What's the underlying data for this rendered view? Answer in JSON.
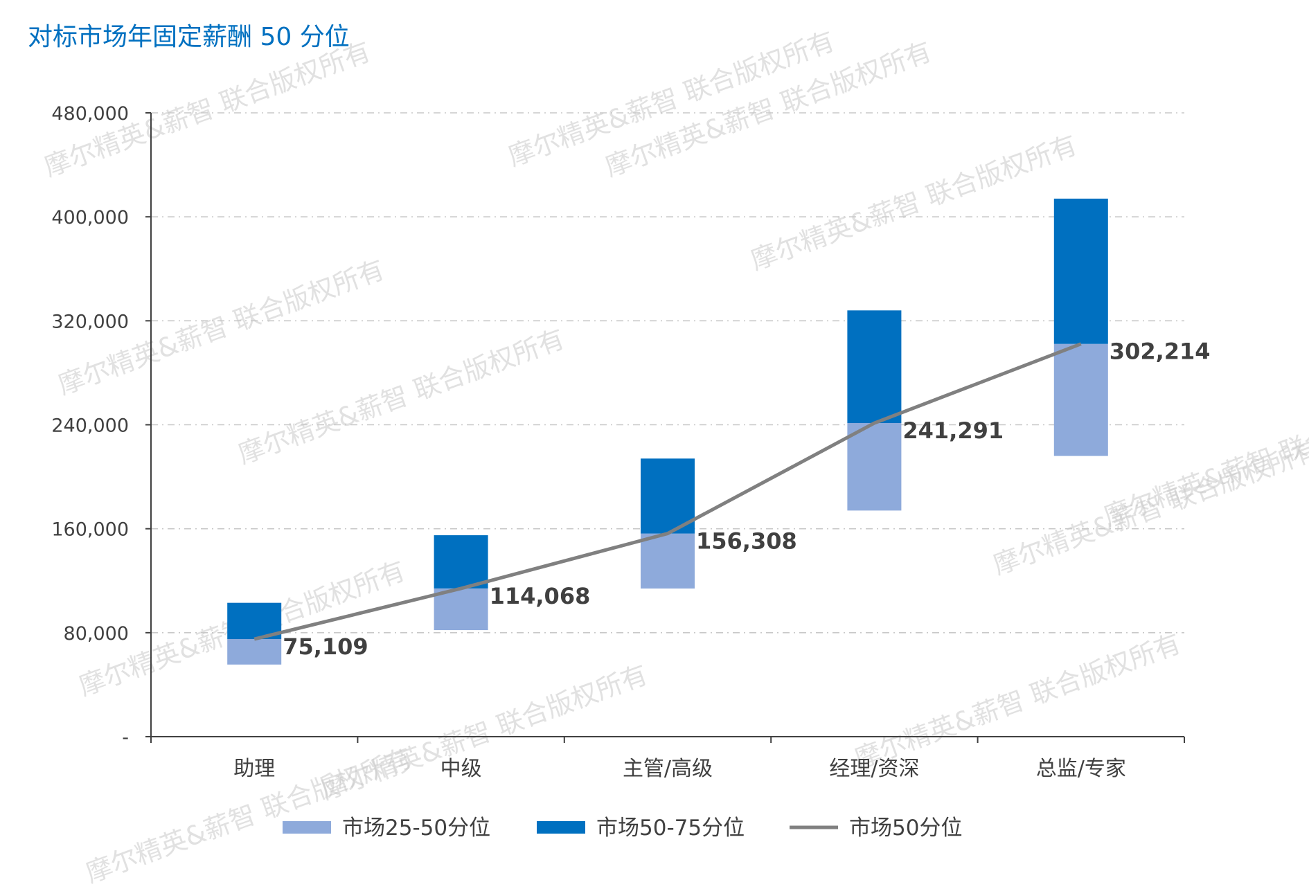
{
  "chart_data": {
    "type": "bar",
    "title": "对标市场年固定薪酬 50 分位",
    "categories": [
      "助理",
      "中级",
      "主管/高级",
      "经理/资深",
      "总监/专家"
    ],
    "series": [
      {
        "name": "市场25-50分位",
        "color": "#8eaadb",
        "low": [
          55500,
          82000,
          114000,
          174000,
          216000
        ],
        "high": [
          75109,
          114068,
          156308,
          241291,
          302214
        ]
      },
      {
        "name": "市场50-75分位",
        "color": "#0070c0",
        "low": [
          75109,
          114068,
          156308,
          241291,
          302214
        ],
        "high": [
          103000,
          155000,
          214000,
          328000,
          414000
        ]
      },
      {
        "name": "市场50分位",
        "type": "line",
        "color": "#808080",
        "values": [
          75109,
          114068,
          156308,
          241291,
          302214
        ]
      }
    ],
    "data_labels": [
      "75,109",
      "114,068",
      "156,308",
      "241,291",
      "302,214"
    ],
    "ylim": [
      0,
      480000
    ],
    "yticks": [
      0,
      80000,
      160000,
      240000,
      320000,
      400000,
      480000
    ],
    "ytick_labels": [
      "-",
      "80,000",
      "160,000",
      "240,000",
      "320,000",
      "400,000",
      "480,000"
    ],
    "grid": true,
    "legend_position": "bottom",
    "xlabel": "",
    "ylabel": ""
  },
  "watermark": {
    "text": "摩尔精英&薪智 联合版权所有",
    "color": "#c9c9c9"
  }
}
